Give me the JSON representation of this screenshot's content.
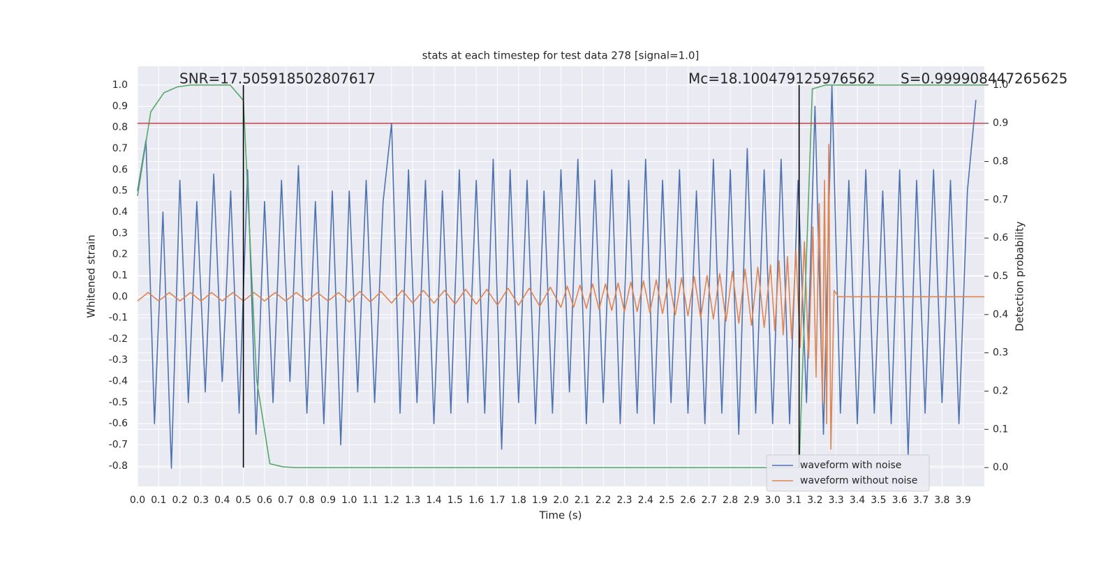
{
  "chart_data": {
    "type": "line",
    "title": "stats at each timestep for test data 278 [signal=1.0]",
    "xlabel": "Time (s)",
    "ylabel": "Whitened strain",
    "y2label": "Detection probability",
    "annotations": [
      "SNR=17.505918502807617",
      "Mc=18.100479125976562",
      "S=0.999908447265625"
    ],
    "grid": true,
    "legend": "lower right",
    "xlim": [
      0,
      4.0
    ],
    "xticks": [
      {
        "value": 0,
        "label": "0.0"
      },
      0.1,
      0.2,
      0.3,
      0.4,
      0.5,
      0.6,
      0.7,
      0.8,
      0.9,
      {
        "value": 1,
        "label": "1.0"
      },
      1.1,
      1.2,
      1.3,
      1.4,
      1.5,
      1.6,
      1.7,
      1.8,
      1.9,
      {
        "value": 2,
        "label": "2.0"
      },
      2.1,
      2.2,
      2.3,
      2.4,
      2.5,
      2.6,
      2.7,
      2.8,
      2.9,
      {
        "value": 3,
        "label": "3.0"
      },
      3.1,
      3.2,
      3.3,
      3.4,
      3.5,
      3.6,
      3.7,
      3.8,
      3.9
    ],
    "ylim": [
      -0.896,
      1.089
    ],
    "yticks": [
      {
        "value": 1,
        "label": "1.0"
      },
      0.9,
      0.8,
      0.7,
      0.6,
      0.5,
      0.4,
      0.3,
      0.2,
      0.1,
      {
        "value": 0,
        "label": "0.0"
      },
      -0.1,
      -0.2,
      -0.3,
      -0.4,
      -0.5,
      -0.6,
      -0.7,
      -0.8
    ],
    "y2lim": [
      -0.049,
      1.049
    ],
    "y2ticks": [
      {
        "value": 1,
        "label": "1.0"
      },
      0.9,
      0.8,
      0.7,
      0.6,
      0.5,
      0.4,
      0.3,
      0.2,
      0.1,
      {
        "value": 0,
        "label": "0.0"
      }
    ],
    "series": [
      {
        "name": "waveform with noise",
        "color": "#4c72b0",
        "x": [
          0,
          0.04,
          0.08,
          0.12,
          0.16,
          0.2,
          0.24,
          0.28,
          0.32,
          0.36,
          0.4,
          0.44,
          0.48,
          0.52,
          0.56,
          0.6,
          0.64,
          0.68,
          0.72,
          0.76,
          0.8,
          0.84,
          0.88,
          0.92,
          0.96,
          1,
          1.04,
          1.08,
          1.12,
          1.16,
          1.2,
          1.24,
          1.28,
          1.32,
          1.36,
          1.4,
          1.44,
          1.48,
          1.52,
          1.56,
          1.6,
          1.64,
          1.68,
          1.72,
          1.76,
          1.8,
          1.84,
          1.88,
          1.92,
          1.96,
          2,
          2.04,
          2.08,
          2.12,
          2.16,
          2.2,
          2.24,
          2.28,
          2.32,
          2.36,
          2.4,
          2.44,
          2.48,
          2.52,
          2.56,
          2.6,
          2.64,
          2.68,
          2.72,
          2.76,
          2.8,
          2.84,
          2.88,
          2.92,
          2.96,
          3,
          3.04,
          3.08,
          3.12,
          3.16,
          3.2,
          3.24,
          3.28,
          3.32,
          3.36,
          3.4,
          3.44,
          3.48,
          3.52,
          3.56,
          3.6,
          3.64,
          3.68,
          3.72,
          3.76,
          3.8,
          3.84,
          3.88,
          3.92,
          3.96
        ],
        "values": [
          0.5,
          0.74,
          -0.6,
          0.4,
          -0.81,
          0.55,
          -0.5,
          0.45,
          -0.45,
          0.58,
          -0.4,
          0.5,
          -0.55,
          0.6,
          -0.65,
          0.45,
          -0.5,
          0.55,
          -0.4,
          0.62,
          -0.55,
          0.45,
          -0.6,
          0.5,
          -0.7,
          0.5,
          -0.45,
          0.55,
          -0.5,
          0.45,
          0.82,
          -0.55,
          0.6,
          -0.5,
          0.55,
          -0.6,
          0.5,
          -0.55,
          0.6,
          -0.5,
          0.55,
          -0.55,
          0.65,
          -0.72,
          0.6,
          -0.5,
          0.55,
          -0.6,
          0.5,
          -0.55,
          0.6,
          -0.45,
          0.65,
          -0.6,
          0.55,
          -0.5,
          0.6,
          -0.6,
          0.55,
          -0.55,
          0.65,
          -0.6,
          0.55,
          -0.5,
          0.6,
          -0.55,
          0.5,
          -0.6,
          0.65,
          -0.55,
          0.6,
          -0.65,
          0.7,
          -0.55,
          0.6,
          -0.6,
          0.65,
          -0.6,
          0.55,
          -0.5,
          0.9,
          -0.65,
          1.0,
          -0.55,
          0.55,
          -0.6,
          0.6,
          -0.55,
          0.5,
          -0.6,
          0.6,
          -0.75,
          0.55,
          -0.55,
          0.6,
          -0.5,
          0.55,
          -0.6,
          0.5,
          0.93
        ]
      },
      {
        "name": "waveform without noise",
        "color": "#dd8452",
        "x": [
          0,
          0.05,
          0.1,
          0.15,
          0.2,
          0.25,
          0.3,
          0.35,
          0.4,
          0.45,
          0.5,
          0.55,
          0.6,
          0.65,
          0.7,
          0.75,
          0.8,
          0.85,
          0.9,
          0.95,
          1,
          1.05,
          1.1,
          1.15,
          1.2,
          1.25,
          1.3,
          1.35,
          1.4,
          1.45,
          1.5,
          1.55,
          1.6,
          1.65,
          1.7,
          1.75,
          1.8,
          1.85,
          1.9,
          1.95,
          2,
          2.03,
          2.06,
          2.09,
          2.12,
          2.15,
          2.18,
          2.21,
          2.24,
          2.27,
          2.3,
          2.33,
          2.36,
          2.39,
          2.42,
          2.45,
          2.48,
          2.51,
          2.54,
          2.57,
          2.6,
          2.63,
          2.66,
          2.69,
          2.72,
          2.75,
          2.78,
          2.81,
          2.84,
          2.87,
          2.9,
          2.93,
          2.96,
          2.99,
          3.01,
          3.03,
          3.05,
          3.07,
          3.09,
          3.11,
          3.13,
          3.15,
          3.17,
          3.19,
          3.205,
          3.22,
          3.235,
          3.245,
          3.255,
          3.265,
          3.275,
          3.29,
          3.31,
          4
        ],
        "values": [
          -0.02,
          0.02,
          -0.02,
          0.02,
          -0.02,
          0.02,
          -0.02,
          0.02,
          -0.02,
          0.02,
          -0.02,
          0.02,
          -0.02,
          0.02,
          -0.02,
          0.02,
          -0.02,
          0.02,
          -0.02,
          0.02,
          -0.025,
          0.025,
          -0.025,
          0.025,
          -0.03,
          0.03,
          -0.03,
          0.03,
          -0.03,
          0.03,
          -0.035,
          0.035,
          -0.035,
          0.035,
          -0.04,
          0.04,
          -0.04,
          0.04,
          -0.045,
          0.045,
          -0.05,
          0.05,
          -0.05,
          0.055,
          -0.055,
          0.06,
          -0.06,
          0.06,
          -0.065,
          0.065,
          -0.07,
          0.07,
          -0.07,
          0.075,
          -0.075,
          0.08,
          -0.08,
          0.085,
          -0.085,
          0.09,
          -0.09,
          0.095,
          -0.1,
          0.1,
          -0.105,
          0.11,
          -0.115,
          0.12,
          -0.125,
          0.13,
          -0.135,
          0.14,
          -0.145,
          0.15,
          -0.16,
          0.17,
          -0.18,
          0.19,
          -0.2,
          0.22,
          -0.24,
          0.26,
          -0.29,
          0.33,
          -0.38,
          0.44,
          -0.5,
          0.55,
          -0.6,
          0.72,
          -0.72,
          0.03,
          0,
          0
        ]
      },
      {
        "color": "#55a868",
        "axis": "y2",
        "x": [
          0,
          0.0625,
          0.125,
          0.1875,
          0.25,
          0.4375,
          0.5,
          0.5625,
          0.625,
          0.6875,
          0.75,
          3.0625,
          3.125,
          3.1875,
          3.25,
          4
        ],
        "values": [
          0.71,
          0.93,
          0.98,
          0.995,
          1,
          1,
          0.96,
          0.23,
          0.01,
          0.002,
          0,
          0,
          0,
          0.99,
          1,
          1
        ]
      }
    ],
    "hlines": [
      {
        "value": 0.9,
        "axis": "y2",
        "color": "#c44e52"
      }
    ],
    "vlines": [
      {
        "value": 0.5,
        "color": "#000000"
      },
      {
        "value": 3.125,
        "color": "#000000"
      }
    ]
  }
}
